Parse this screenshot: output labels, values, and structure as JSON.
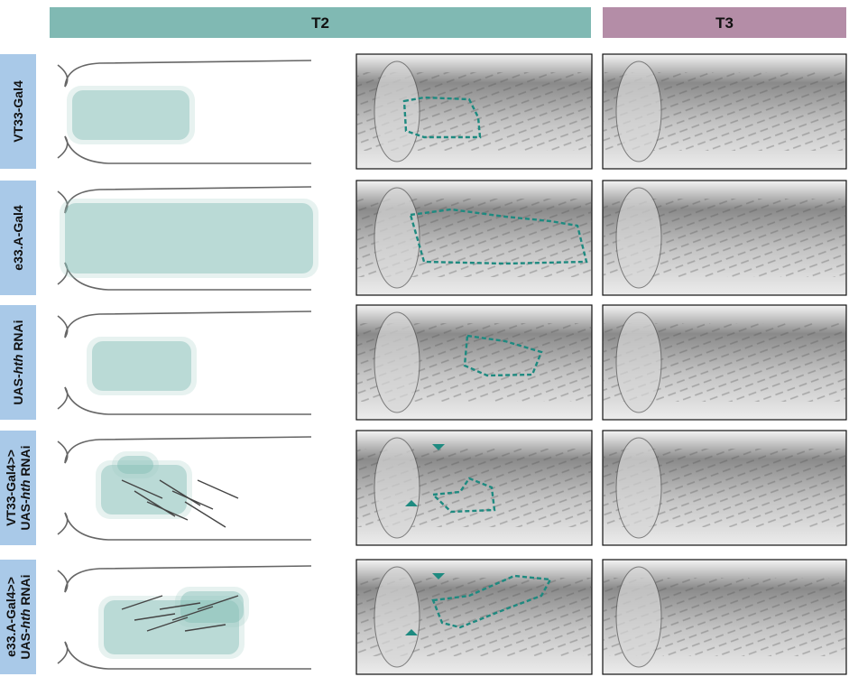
{
  "header": {
    "columns": [
      "T2",
      "T3"
    ]
  },
  "rows": [
    {
      "lines": [
        [
          "VT33-Gal4"
        ]
      ]
    },
    {
      "lines": [
        [
          "e33.A-Gal4"
        ]
      ]
    },
    {
      "lines": [
        [
          "UAS-",
          "hth",
          " RNAi"
        ]
      ]
    },
    {
      "lines": [
        [
          "VT33-Gal4>>"
        ],
        [
          "UAS-",
          "hth",
          " RNAi"
        ]
      ]
    },
    {
      "lines": [
        [
          "e33.A-Gal4>>"
        ],
        [
          "UAS-",
          "hth",
          " RNAi"
        ]
      ]
    }
  ]
}
